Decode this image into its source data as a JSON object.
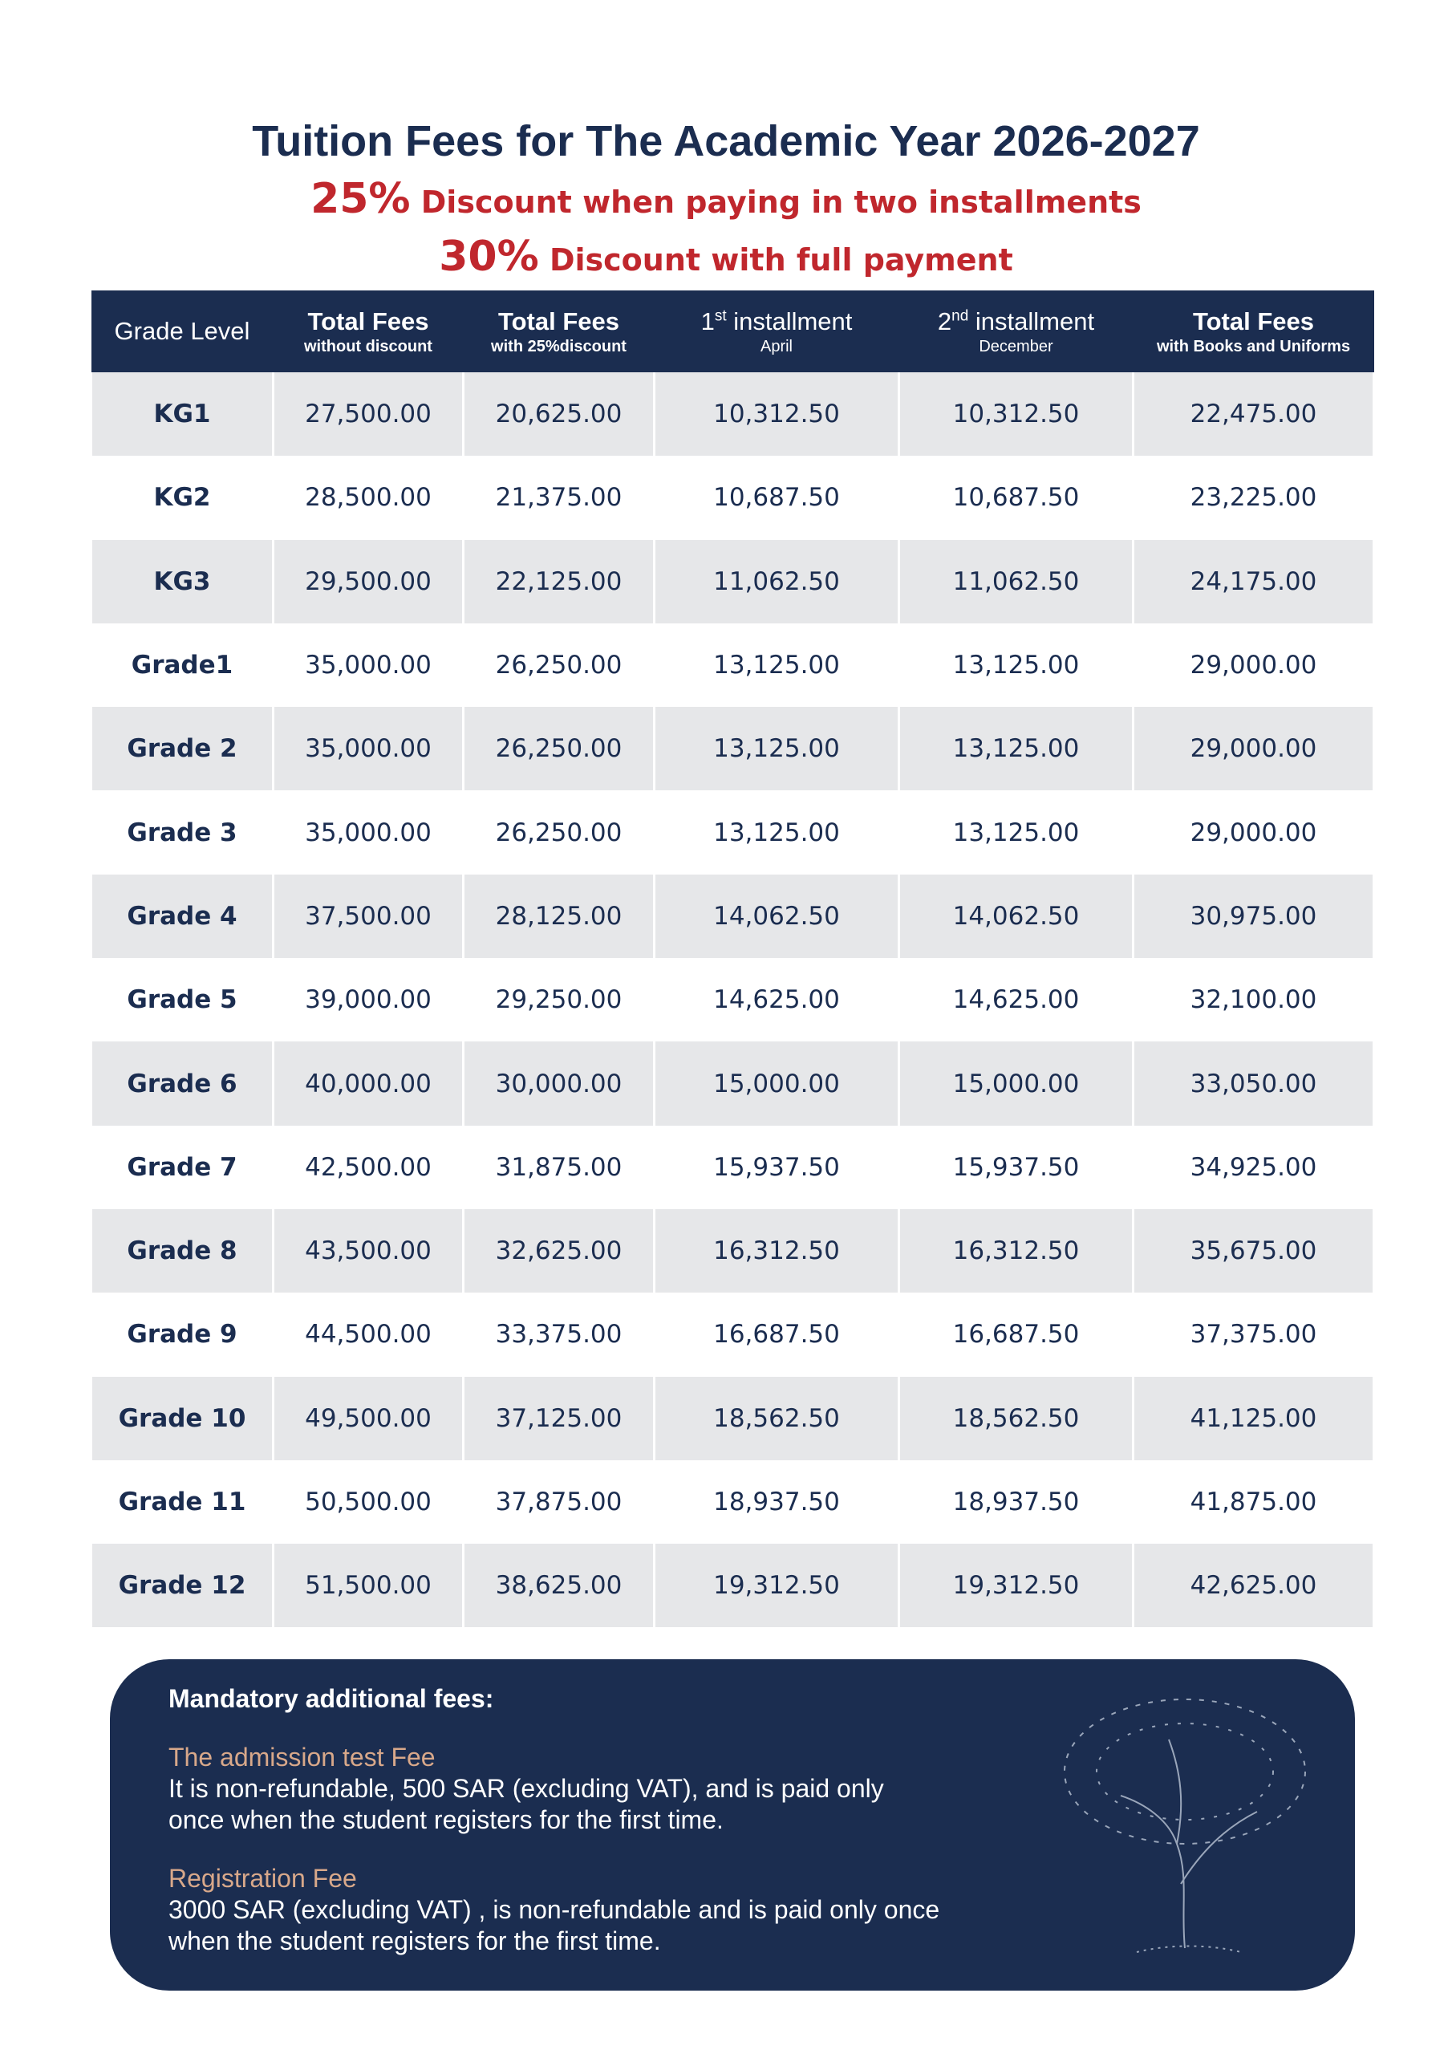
{
  "header": {
    "title": "Tuition Fees for The Academic Year 2026-2027",
    "discounts": [
      {
        "percent": "25%",
        "text": " Discount when paying in two installments"
      },
      {
        "percent": "30%",
        "text": " Discount with full payment"
      }
    ]
  },
  "table": {
    "columns": [
      {
        "main": "Grade Level"
      },
      {
        "main": "Total Fees",
        "sub": "without discount"
      },
      {
        "main": "Total Fees",
        "sub": "with 25%discount"
      },
      {
        "main": "1",
        "sup": "st",
        "rest": " installment",
        "sub": "April"
      },
      {
        "main": "2",
        "sup": "nd",
        "rest": " installment",
        "sub": "December"
      },
      {
        "main": "Total Fees",
        "sub": "with Books and Uniforms"
      }
    ],
    "rows": [
      [
        "KG1",
        "27,500.00",
        "20,625.00",
        "10,312.50",
        "10,312.50",
        "22,475.00"
      ],
      [
        "KG2",
        "28,500.00",
        "21,375.00",
        "10,687.50",
        "10,687.50",
        "23,225.00"
      ],
      [
        "KG3",
        "29,500.00",
        "22,125.00",
        "11,062.50",
        "11,062.50",
        "24,175.00"
      ],
      [
        "Grade1",
        "35,000.00",
        "26,250.00",
        "13,125.00",
        "13,125.00",
        "29,000.00"
      ],
      [
        "Grade 2",
        "35,000.00",
        "26,250.00",
        "13,125.00",
        "13,125.00",
        "29,000.00"
      ],
      [
        "Grade 3",
        "35,000.00",
        "26,250.00",
        "13,125.00",
        "13,125.00",
        "29,000.00"
      ],
      [
        "Grade 4",
        "37,500.00",
        "28,125.00",
        "14,062.50",
        "14,062.50",
        "30,975.00"
      ],
      [
        "Grade 5",
        "39,000.00",
        "29,250.00",
        "14,625.00",
        "14,625.00",
        "32,100.00"
      ],
      [
        "Grade 6",
        "40,000.00",
        "30,000.00",
        "15,000.00",
        "15,000.00",
        "33,050.00"
      ],
      [
        "Grade 7",
        "42,500.00",
        "31,875.00",
        "15,937.50",
        "15,937.50",
        "34,925.00"
      ],
      [
        "Grade 8",
        "43,500.00",
        "32,625.00",
        "16,312.50",
        "16,312.50",
        "35,675.00"
      ],
      [
        "Grade 9",
        "44,500.00",
        "33,375.00",
        "16,687.50",
        "16,687.50",
        "37,375.00"
      ],
      [
        "Grade 10",
        "49,500.00",
        "37,125.00",
        "18,562.50",
        "18,562.50",
        "41,125.00"
      ],
      [
        "Grade 11",
        "50,500.00",
        "37,875.00",
        "18,937.50",
        "18,937.50",
        "41,875.00"
      ],
      [
        "Grade 12",
        "51,500.00",
        "38,625.00",
        "19,312.50",
        "19,312.50",
        "42,625.00"
      ]
    ]
  },
  "notes": {
    "title": "Mandatory additional fees:",
    "items": [
      {
        "heading": "The admission test Fee",
        "lines": [
          "It is non-refundable, 500 SAR (excluding VAT), and is paid only",
          "once when the student registers for the first time."
        ]
      },
      {
        "heading": "Registration Fee",
        "lines": [
          "3000 SAR (excluding VAT) , is non-refundable and is paid only once",
          "when the student registers for the first time."
        ]
      }
    ]
  }
}
